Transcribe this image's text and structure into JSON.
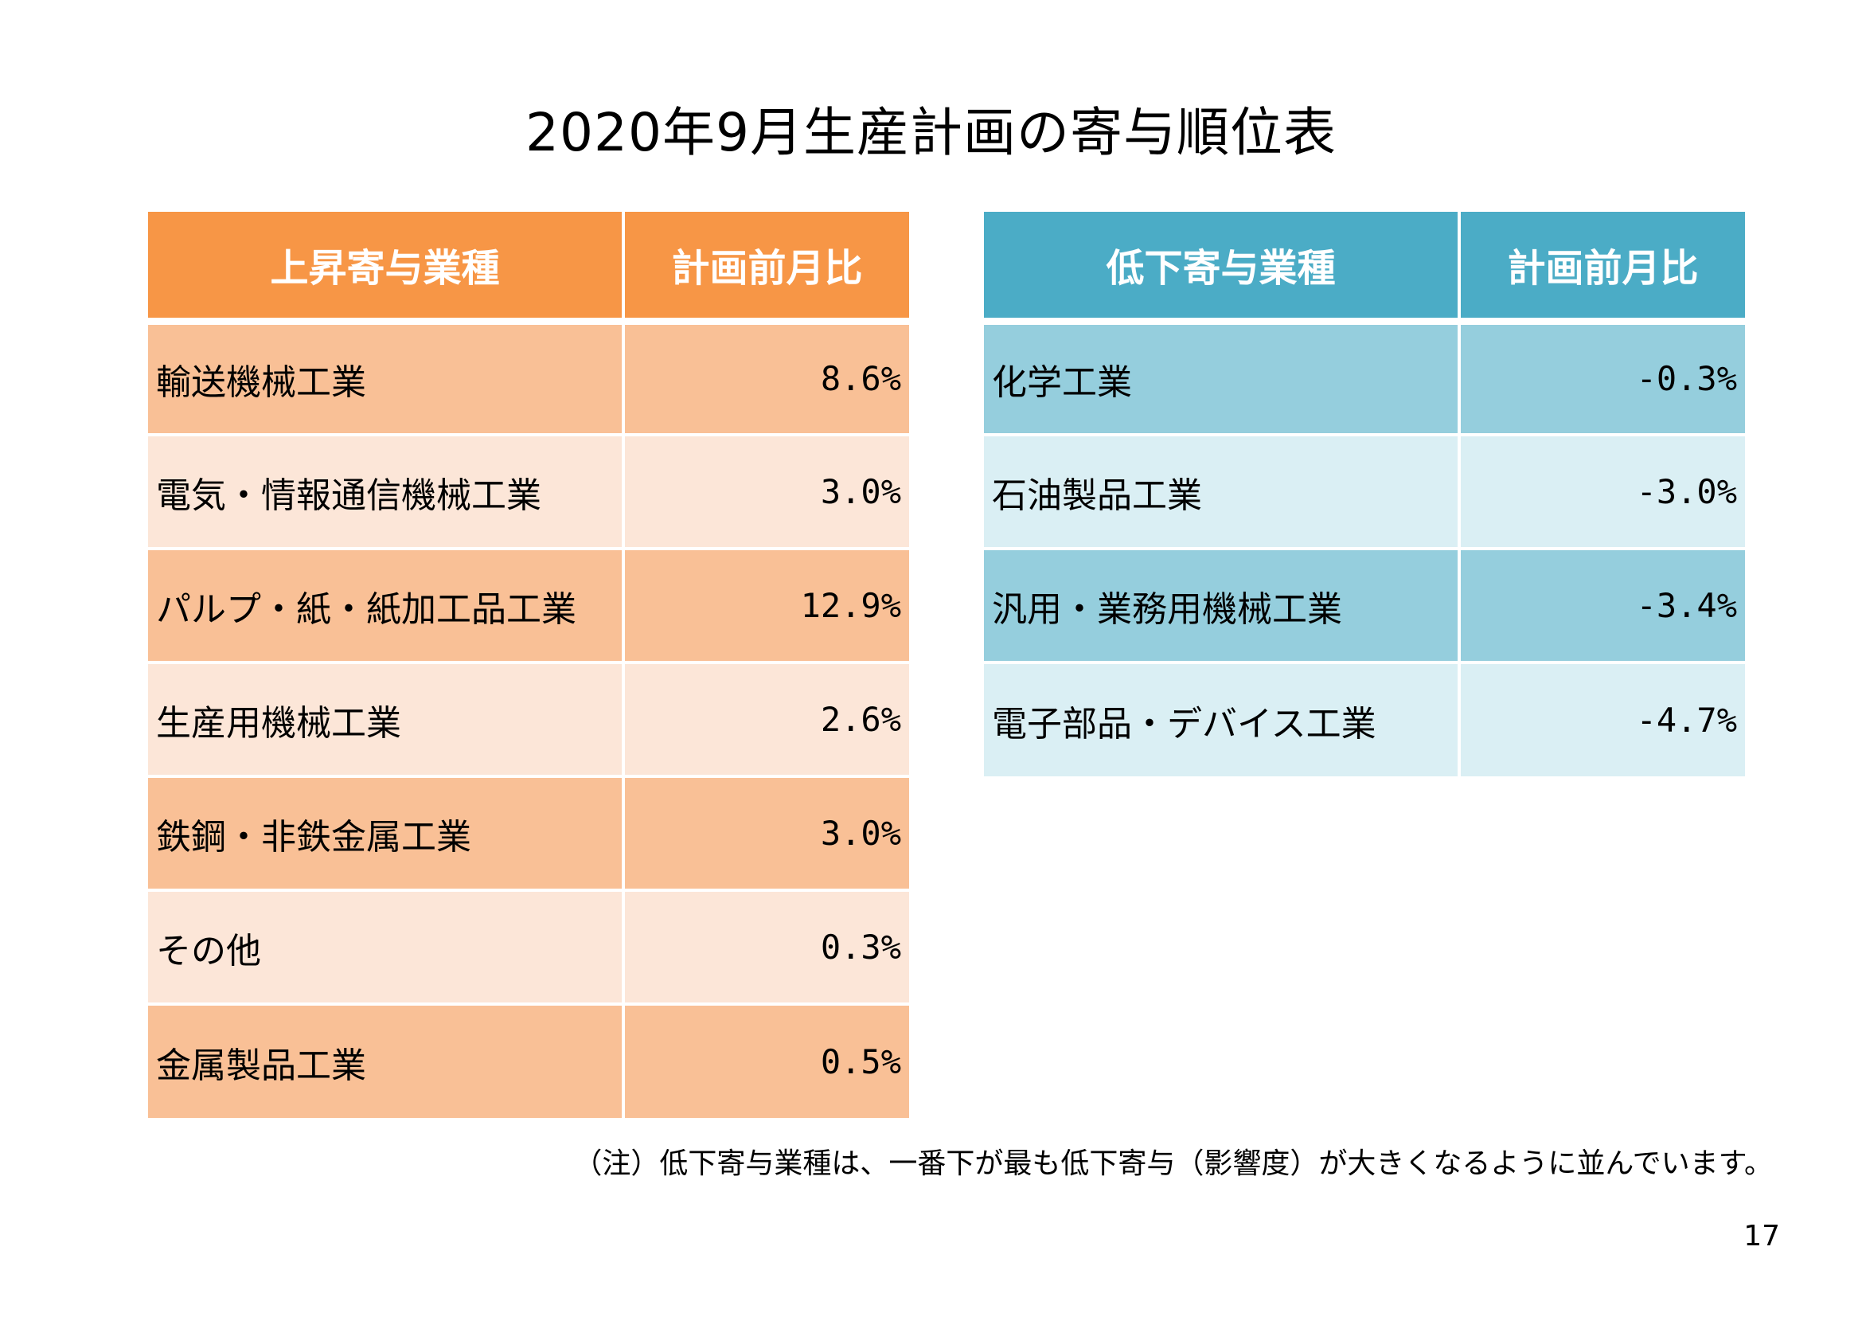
{
  "title": "2020年9月生産計画の寄与順位表",
  "up_table": {
    "header_industry": "上昇寄与業種",
    "header_value": "計画前月比",
    "rows": [
      {
        "industry": "輸送機械工業",
        "value": "8.6%"
      },
      {
        "industry": "電気・情報通信機械工業",
        "value": "3.0%"
      },
      {
        "industry": "パルプ・紙・紙加工品工業",
        "value": "12.9%"
      },
      {
        "industry": "生産用機械工業",
        "value": "2.6%"
      },
      {
        "industry": "鉄鋼・非鉄金属工業",
        "value": "3.0%"
      },
      {
        "industry": "その他",
        "value": "0.3%"
      },
      {
        "industry": "金属製品工業",
        "value": "0.5%"
      }
    ],
    "header_color": "#f79646",
    "row_color_dark": "#f9c096",
    "row_color_light": "#fce6d8"
  },
  "down_table": {
    "header_industry": "低下寄与業種",
    "header_value": "計画前月比",
    "rows": [
      {
        "industry": "化学工業",
        "value": "-0.3%"
      },
      {
        "industry": "石油製品工業",
        "value": "-3.0%"
      },
      {
        "industry": "汎用・業務用機械工業",
        "value": "-3.4%"
      },
      {
        "industry": "電子部品・デバイス工業",
        "value": "-4.7%"
      }
    ],
    "header_color": "#4bacc6",
    "row_color_dark": "#95cedd",
    "row_color_light": "#daeff4"
  },
  "note": "（注）低下寄与業種は、一番下が最も低下寄与（影響度）が大きくなるように並んでいます。",
  "page_number": "17"
}
